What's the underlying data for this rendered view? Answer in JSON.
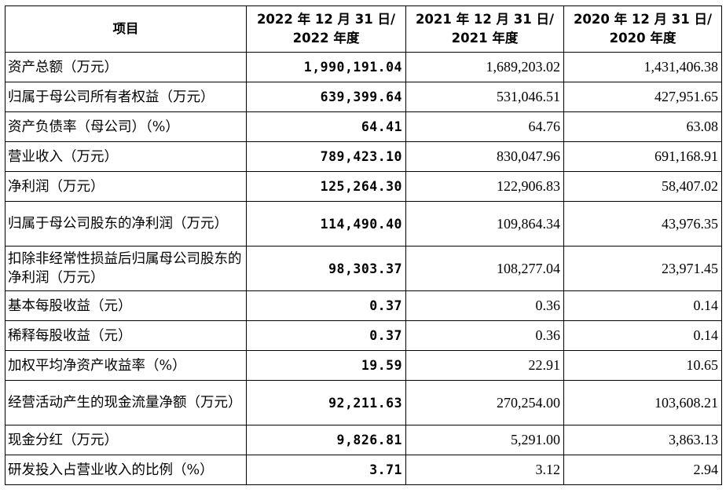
{
  "table": {
    "headers": {
      "item": "项目",
      "col2022": [
        "2022 年 12 月 31 日/",
        "2022 年度"
      ],
      "col2021": [
        "2021 年 12 月 31 日/",
        "2021 年度"
      ],
      "col2020": [
        "2020 年 12 月 31 日/",
        "2020 年度"
      ]
    },
    "rows": [
      {
        "label": "资产总额（万元）",
        "v2022": "1,990,191.04",
        "v2021": "1,689,203.02",
        "v2020": "1,431,406.38"
      },
      {
        "label": "归属于母公司所有者权益（万元）",
        "v2022": "639,399.64",
        "v2021": "531,046.51",
        "v2020": "427,951.65"
      },
      {
        "label": "资产负债率（母公司）（%）",
        "v2022": "64.41",
        "v2021": "64.76",
        "v2020": "63.08"
      },
      {
        "label": "营业收入（万元）",
        "v2022": "789,423.10",
        "v2021": "830,047.96",
        "v2020": "691,168.91"
      },
      {
        "label": "净利润（万元）",
        "v2022": "125,264.30",
        "v2021": "122,906.83",
        "v2020": "58,407.02"
      },
      {
        "label": "归属于母公司股东的净利润（万元）",
        "v2022": "114,490.40",
        "v2021": "109,864.34",
        "v2020": "43,976.35"
      },
      {
        "label": "扣除非经常性损益后归属母公司股东的净利润（万元）",
        "v2022": "98,303.37",
        "v2021": "108,277.04",
        "v2020": "23,971.45"
      },
      {
        "label": "基本每股收益（元）",
        "v2022": "0.37",
        "v2021": "0.36",
        "v2020": "0.14"
      },
      {
        "label": "稀释每股收益（元）",
        "v2022": "0.37",
        "v2021": "0.36",
        "v2020": "0.14"
      },
      {
        "label": "加权平均净资产收益率（%）",
        "v2022": "19.59",
        "v2021": "22.91",
        "v2020": "10.65"
      },
      {
        "label": "经营活动产生的现金流量净额（万元）",
        "v2022": "92,211.63",
        "v2021": "270,254.00",
        "v2020": "103,608.21"
      },
      {
        "label": "现金分红（万元）",
        "v2022": "9,826.81",
        "v2021": "5,291.00",
        "v2020": "3,863.13"
      },
      {
        "label": "研发投入占营业收入的比例（%）",
        "v2022": "3.71",
        "v2021": "3.12",
        "v2020": "2.94"
      }
    ]
  }
}
